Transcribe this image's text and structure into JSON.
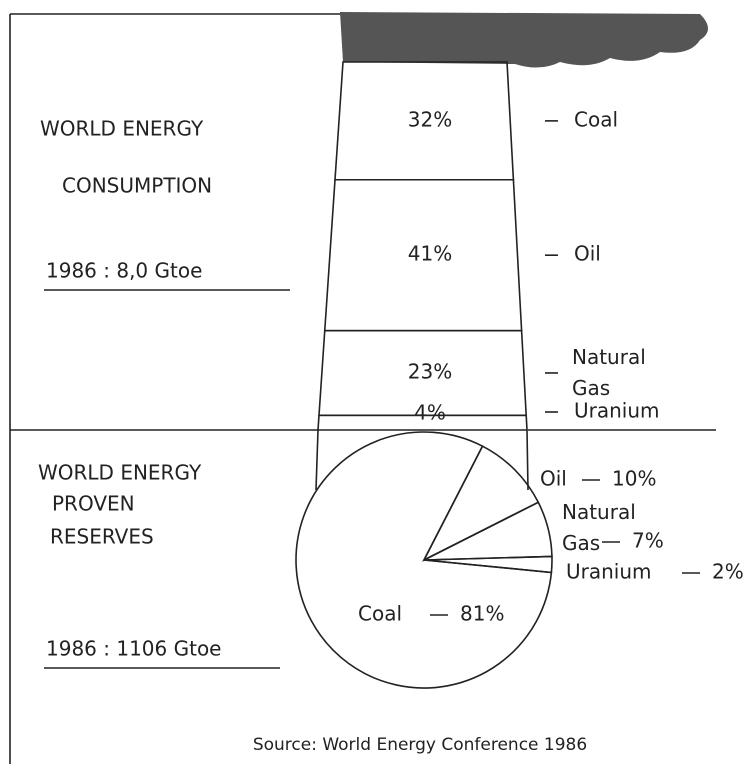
{
  "chart_data": [
    {
      "type": "chimney",
      "title_lines": [
        "WORLD ENERGY",
        "CONSUMPTION"
      ],
      "subtitle": "1986 : 8,0 Gtoe",
      "categories": [
        "Coal",
        "Oil",
        "Natural Gas",
        "Uranium"
      ],
      "values": [
        32,
        41,
        23,
        4
      ],
      "value_labels": [
        "32%",
        "41%",
        "23%",
        "4%"
      ]
    },
    {
      "type": "pie",
      "title_lines": [
        "WORLD ENERGY",
        "PROVEN",
        "RESERVES"
      ],
      "subtitle": "1986 : 1106 Gtoe",
      "categories": [
        "Oil",
        "Natural Gas",
        "Uranium",
        "Coal"
      ],
      "values": [
        10,
        7,
        2,
        81
      ],
      "value_labels": [
        "10%",
        "7%",
        "2%",
        "81%"
      ]
    }
  ],
  "source": "Source: World Energy Conference 1986"
}
